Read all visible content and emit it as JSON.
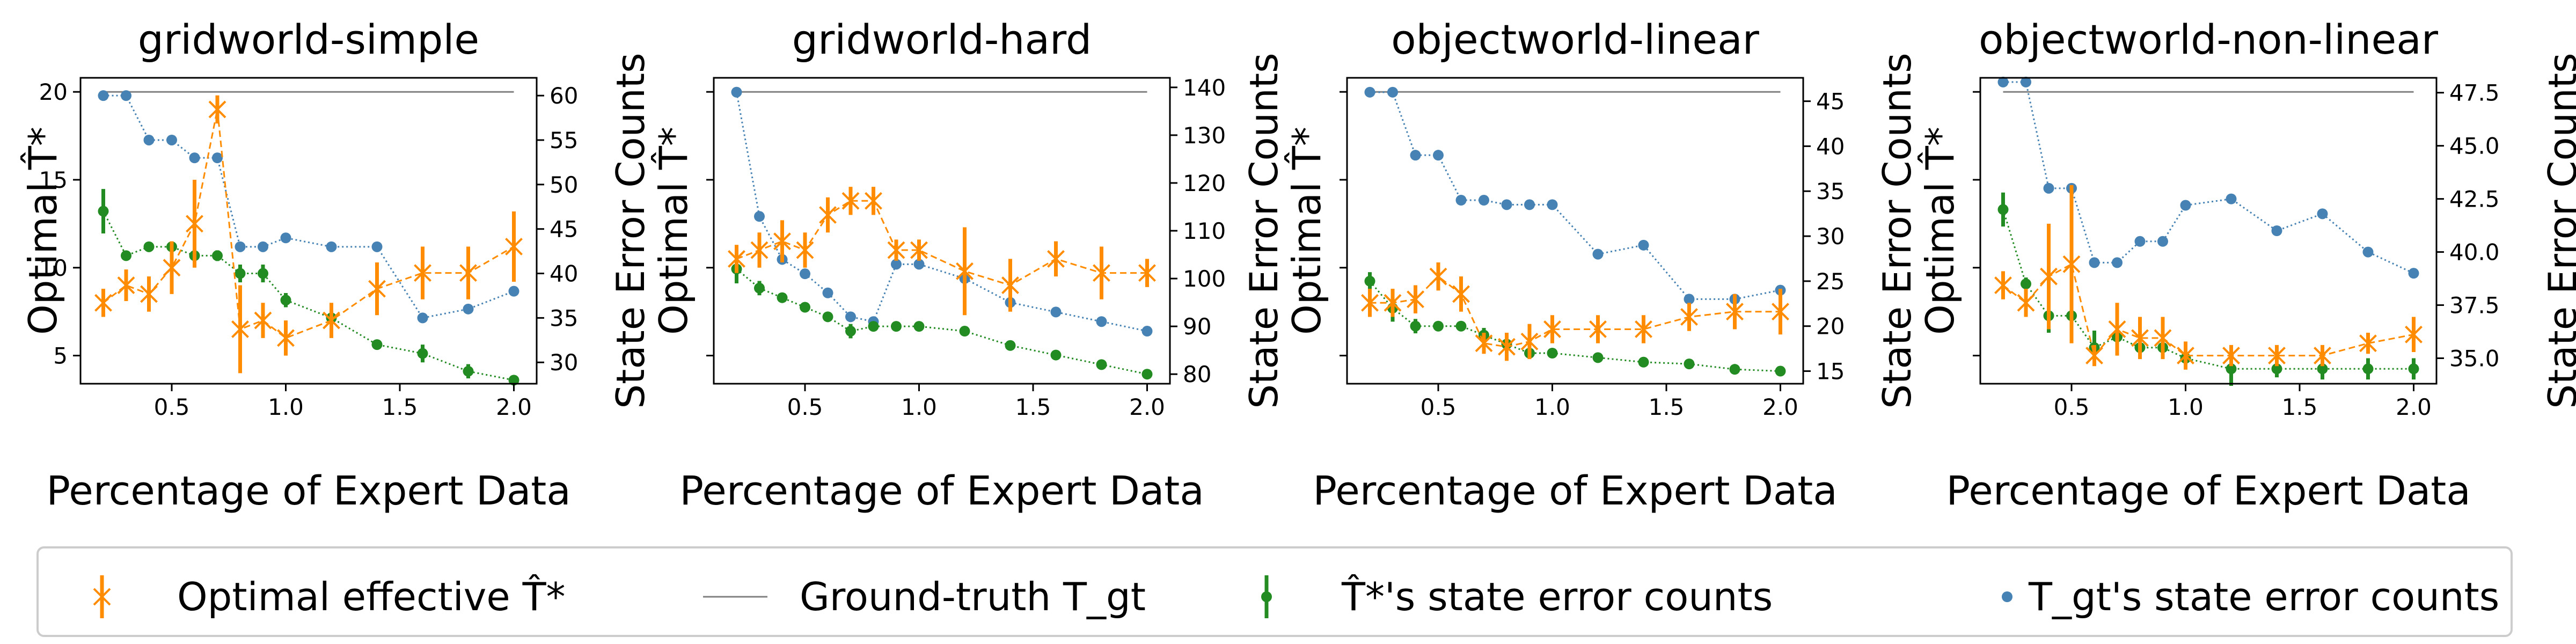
{
  "figure": {
    "legend": {
      "placement": "bottom",
      "entries": [
        {
          "key": "opt",
          "label": "Optimal effective T̂*"
        },
        {
          "key": "gt",
          "label": "Ground-truth T_gt"
        },
        {
          "key": "hat_err",
          "label": "T̂*'s state error counts"
        },
        {
          "key": "gt_err",
          "label": "T_gt's state error counts"
        }
      ]
    },
    "colors": {
      "optimal": "#ff8c00",
      "ground_truth": "#808080",
      "hat_errors": "#228b22",
      "gt_errors": "#4682b4"
    }
  },
  "chart_data": [
    {
      "type": "line",
      "title": "gridworld-simple",
      "xlabel": "Percentage of Expert Data",
      "ylabel_left": "Optimal T̂*",
      "ylabel_right": "State Error Counts",
      "xlim": [
        0.1,
        2.1
      ],
      "xticks": [
        0.5,
        1.0,
        1.5,
        2.0
      ],
      "ylim_left": [
        3.4,
        20.8
      ],
      "yticks_left": [
        5,
        10,
        15,
        20
      ],
      "ylim_right": [
        27.6,
        62
      ],
      "yticks_right": [
        30,
        35,
        40,
        45,
        50,
        55,
        60
      ],
      "x": [
        0.2,
        0.3,
        0.4,
        0.5,
        0.6,
        0.7,
        0.8,
        0.9,
        1.0,
        1.2,
        1.4,
        1.6,
        1.8,
        2.0
      ],
      "optimal_T": {
        "values": [
          8.0,
          9.0,
          8.5,
          10.0,
          12.5,
          19.0,
          6.5,
          7.0,
          6.0,
          7.0,
          8.8,
          9.7,
          9.7,
          11.2
        ],
        "err": [
          0.8,
          0.9,
          1.0,
          1.5,
          2.5,
          0.8,
          2.5,
          1.0,
          1.0,
          1.0,
          1.5,
          1.5,
          1.5,
          2.0
        ]
      },
      "ground_truth_T": 20,
      "hat_errors": {
        "values": [
          47,
          42,
          43,
          43,
          42,
          42,
          40,
          40,
          37,
          35,
          32,
          31,
          29,
          28
        ],
        "err": [
          2.5,
          0.4,
          0.5,
          0.5,
          0.6,
          0.6,
          1.0,
          1.0,
          0.8,
          0.5,
          0.3,
          1.0,
          0.8,
          0.3
        ]
      },
      "gt_errors": [
        60,
        60,
        55,
        55,
        53,
        53,
        43,
        43,
        44,
        43,
        43,
        35,
        36,
        38
      ]
    },
    {
      "type": "line",
      "title": "gridworld-hard",
      "xlabel": "Percentage of Expert Data",
      "ylabel_left": "Optimal T̂*",
      "ylabel_right": "State Error Counts",
      "xlim": [
        0.1,
        2.1
      ],
      "xticks": [
        0.5,
        1.0,
        1.5,
        2.0
      ],
      "ylim_left": [
        3.4,
        20.8
      ],
      "yticks_left": [],
      "ylim_right": [
        78,
        142
      ],
      "yticks_right": [
        80,
        90,
        100,
        110,
        120,
        130,
        140
      ],
      "x": [
        0.2,
        0.3,
        0.4,
        0.5,
        0.6,
        0.7,
        0.8,
        0.9,
        1.0,
        1.2,
        1.4,
        1.6,
        1.8,
        2.0
      ],
      "optimal_T": {
        "values": [
          10.5,
          11.0,
          11.5,
          11.0,
          13.0,
          13.8,
          13.8,
          11.0,
          11.0,
          9.8,
          9.0,
          10.5,
          9.7,
          9.7
        ],
        "err": [
          0.8,
          1.0,
          1.2,
          1.0,
          1.0,
          0.8,
          0.8,
          0.6,
          0.6,
          2.5,
          1.5,
          1.0,
          1.5,
          0.8
        ]
      },
      "ground_truth_T": 20,
      "hat_errors": {
        "values": [
          102,
          98,
          96,
          94,
          92,
          89,
          90,
          90,
          90,
          89,
          86,
          84,
          82,
          80
        ],
        "err": [
          3.0,
          1.5,
          0.5,
          0.5,
          0.5,
          1.5,
          0.5,
          0.5,
          0.5,
          0.5,
          0.3,
          0.3,
          0.3,
          0.3
        ]
      },
      "gt_errors": [
        139,
        113,
        104,
        101,
        97,
        92,
        91,
        103,
        103,
        100,
        95,
        93,
        91,
        89
      ]
    },
    {
      "type": "line",
      "title": "objectworld-linear",
      "xlabel": "Percentage of Expert Data",
      "ylabel_left": "Optimal T̂*",
      "ylabel_right": "State Error Counts",
      "xlim": [
        0.1,
        2.1
      ],
      "xticks": [
        0.5,
        1.0,
        1.5,
        2.0
      ],
      "ylim_left": [
        3.4,
        20.8
      ],
      "yticks_left": [],
      "ylim_right": [
        13.6,
        47.6
      ],
      "yticks_right": [
        15,
        20,
        25,
        30,
        35,
        40,
        45
      ],
      "x": [
        0.2,
        0.3,
        0.4,
        0.5,
        0.6,
        0.7,
        0.8,
        0.9,
        1.0,
        1.2,
        1.4,
        1.6,
        1.8,
        2.0
      ],
      "optimal_T": {
        "values": [
          8.0,
          8.0,
          8.2,
          9.5,
          8.5,
          5.7,
          5.5,
          5.8,
          6.5,
          6.5,
          6.5,
          7.2,
          7.5,
          7.5
        ],
        "err": [
          0.8,
          0.8,
          0.8,
          0.8,
          1.0,
          0.6,
          0.8,
          1.0,
          0.8,
          0.8,
          0.8,
          0.8,
          1.0,
          1.3
        ]
      },
      "ground_truth_T": 20,
      "hat_errors": {
        "values": [
          25,
          22,
          20,
          20,
          20,
          19,
          18,
          17,
          17,
          16.5,
          16,
          15.8,
          15.2,
          15
        ],
        "err": [
          1.0,
          1.5,
          0.8,
          0.5,
          0.5,
          0.8,
          0.5,
          0.5,
          0.5,
          0.3,
          0.3,
          0.3,
          0.3,
          0.3
        ]
      },
      "gt_errors": [
        46,
        46,
        39,
        39,
        34,
        34,
        33.5,
        33.5,
        33.5,
        28,
        29,
        23,
        23,
        24
      ]
    },
    {
      "type": "line",
      "title": "objectworld-non-linear",
      "xlabel": "Percentage of Expert Data",
      "ylabel_left": "Optimal T̂*",
      "ylabel_right": "State Error Counts",
      "xlim": [
        0.1,
        2.1
      ],
      "xticks": [
        0.5,
        1.0,
        1.5,
        2.0
      ],
      "ylim_left": [
        3.4,
        20.8
      ],
      "yticks_left": [],
      "ylim_right": [
        33.8,
        48.2
      ],
      "yticks_right": [
        35.0,
        37.5,
        40.0,
        42.5,
        45.0,
        47.5
      ],
      "x": [
        0.2,
        0.3,
        0.4,
        0.5,
        0.6,
        0.7,
        0.8,
        0.9,
        1.0,
        1.2,
        1.4,
        1.6,
        1.8,
        2.0
      ],
      "optimal_T": {
        "values": [
          9.0,
          8.0,
          9.5,
          10.2,
          5.0,
          6.5,
          6.0,
          6.0,
          5.0,
          5.0,
          5.0,
          5.0,
          5.7,
          6.2
        ],
        "err": [
          0.8,
          0.8,
          3.0,
          4.5,
          0.6,
          1.5,
          1.2,
          1.2,
          0.8,
          0.6,
          0.6,
          0.6,
          0.6,
          1.0
        ]
      },
      "ground_truth_T": 20,
      "hat_errors": {
        "values": [
          42,
          38.5,
          37,
          37,
          35.5,
          36,
          35.5,
          35.5,
          35,
          34.5,
          34.5,
          34.5,
          34.5,
          34.5
        ],
        "err": [
          0.8,
          0.3,
          0.8,
          0.8,
          0.8,
          0.5,
          0.5,
          0.5,
          0.5,
          0.8,
          0.4,
          0.5,
          0.5,
          0.5
        ]
      },
      "gt_errors": [
        48,
        48,
        43,
        43,
        39.5,
        39.5,
        40.5,
        40.5,
        42.2,
        42.5,
        41,
        41.8,
        40,
        39
      ]
    }
  ]
}
